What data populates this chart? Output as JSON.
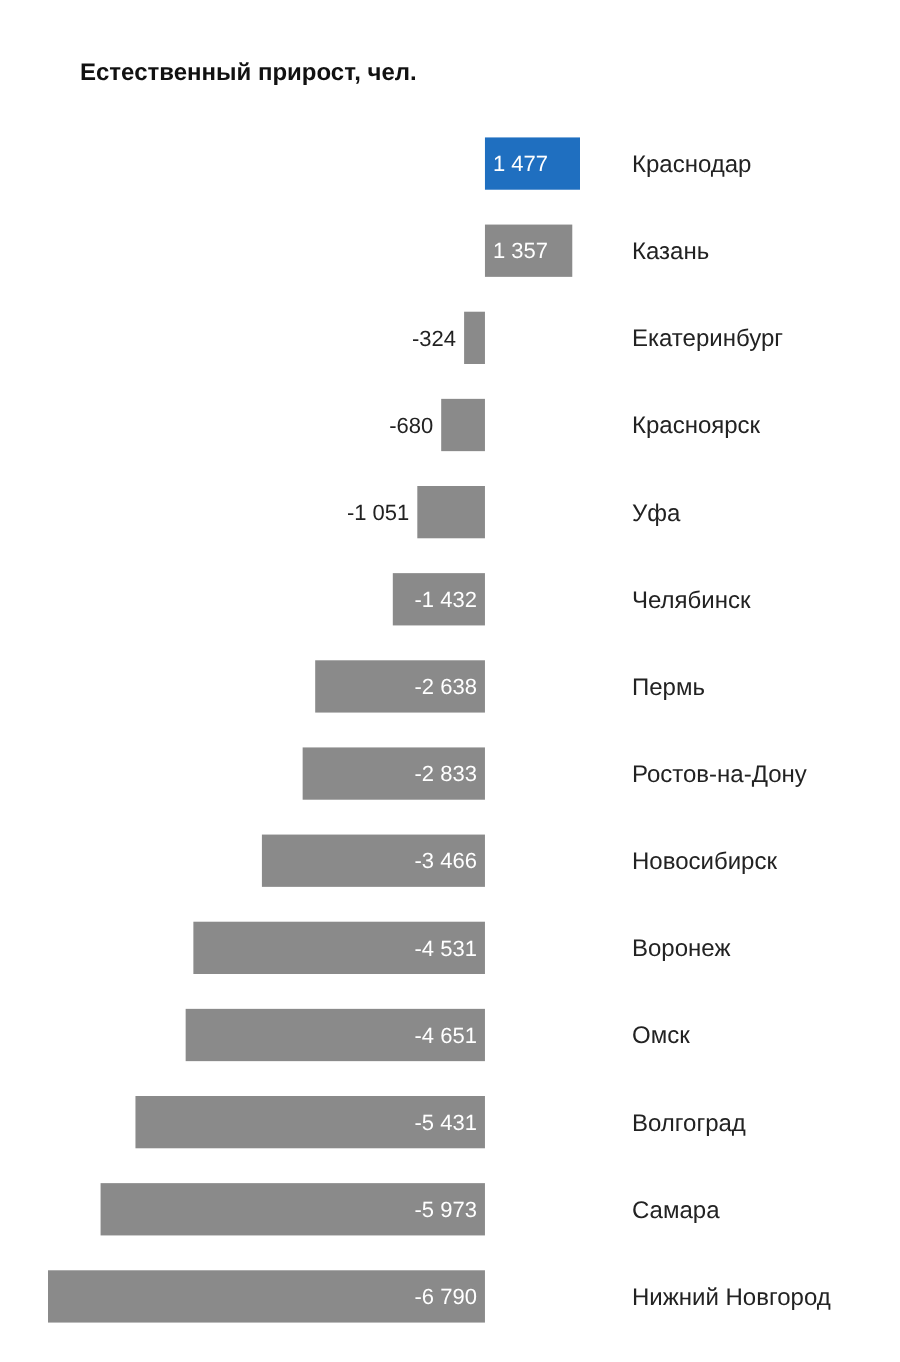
{
  "chart_data": {
    "type": "bar",
    "orientation": "horizontal",
    "title": "Естественный прирост, чел.",
    "categories": [
      "Краснодар",
      "Казань",
      "Екатеринбург",
      "Красноярск",
      "Уфа",
      "Челябинск",
      "Пермь",
      "Ростов-на-Дону",
      "Новосибирск",
      "Воронеж",
      "Омск",
      "Волгоград",
      "Самара",
      "Нижний Новгород"
    ],
    "values": [
      1477,
      1357,
      -324,
      -680,
      -1051,
      -1432,
      -2638,
      -2833,
      -3466,
      -4531,
      -4651,
      -5431,
      -5973,
      -6790
    ],
    "value_labels": [
      "1 477",
      "1 357",
      "-324",
      "-680",
      "-1 051",
      "-1 432",
      "-2 638",
      "-2 833",
      "-3 466",
      "-4 531",
      "-4 651",
      "-5 431",
      "-5 973",
      "-6 790"
    ],
    "colors": [
      "#1f6fc0",
      "#8a8a8a",
      "#8a8a8a",
      "#8a8a8a",
      "#8a8a8a",
      "#8a8a8a",
      "#8a8a8a",
      "#8a8a8a",
      "#8a8a8a",
      "#8a8a8a",
      "#8a8a8a",
      "#8a8a8a",
      "#8a8a8a",
      "#8a8a8a"
    ]
  }
}
